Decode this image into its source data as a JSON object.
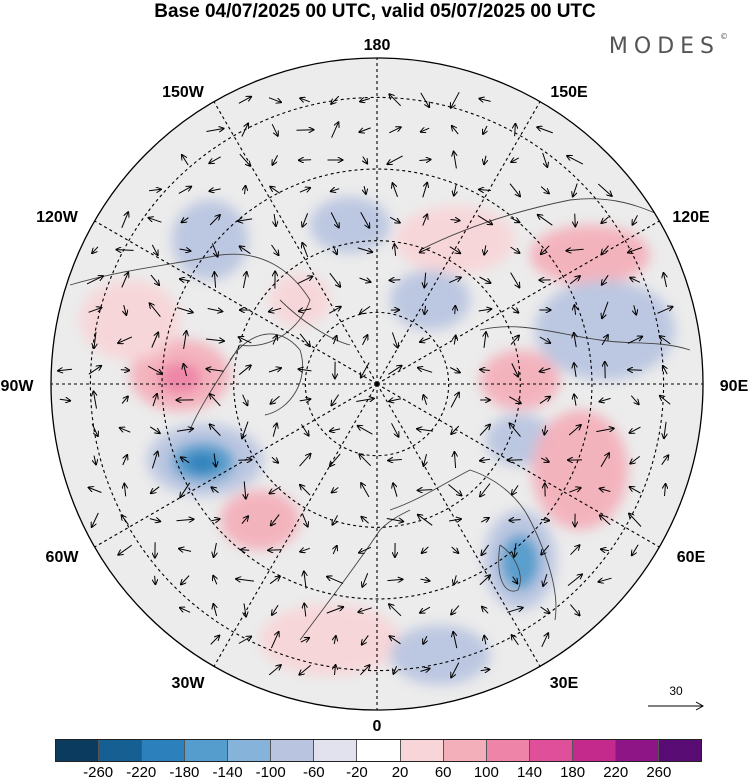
{
  "title": "Base 04/07/2025 00 UTC, valid 05/07/2025 00 UTC",
  "brand": "MODES",
  "brand_mark": "©",
  "longitude_labels": [
    {
      "id": "lon-180",
      "text": "180"
    },
    {
      "id": "lon-150e",
      "text": "150E"
    },
    {
      "id": "lon-120e",
      "text": "120E"
    },
    {
      "id": "lon-90e",
      "text": "90E"
    },
    {
      "id": "lon-60e",
      "text": "60E"
    },
    {
      "id": "lon-30e",
      "text": "30E"
    },
    {
      "id": "lon-0",
      "text": "0"
    },
    {
      "id": "lon-30w",
      "text": "30W"
    },
    {
      "id": "lon-60w",
      "text": "60W"
    },
    {
      "id": "lon-90w",
      "text": "90W"
    },
    {
      "id": "lon-120w",
      "text": "120W"
    },
    {
      "id": "lon-150w",
      "text": "150W"
    }
  ],
  "reference_vector": {
    "label": "30"
  },
  "colorbar": {
    "levels": [
      "-260",
      "-220",
      "-180",
      "-140",
      "-100",
      "-60",
      "-20",
      "20",
      "60",
      "100",
      "140",
      "180",
      "220",
      "260"
    ],
    "colors": [
      "#0b3b5e",
      "#155f92",
      "#2c80bb",
      "#559dcc",
      "#85b3d9",
      "#b9c5e0",
      "#e2e1ee",
      "#ffffff",
      "#f8d5d8",
      "#f3b0bb",
      "#ee85a8",
      "#e0509a",
      "#c42a8c",
      "#8e1585",
      "#5a0c75"
    ]
  },
  "anomaly_features": [
    {
      "name": "negative-anomaly-north-atlantic",
      "value": -180
    },
    {
      "name": "negative-anomaly-scandinavia",
      "value": -140
    },
    {
      "name": "positive-anomaly-hudson-bay",
      "value": 60
    },
    {
      "name": "positive-anomaly-siberia",
      "value": 60
    },
    {
      "name": "positive-anomaly-central-asia",
      "value": 60
    }
  ]
}
